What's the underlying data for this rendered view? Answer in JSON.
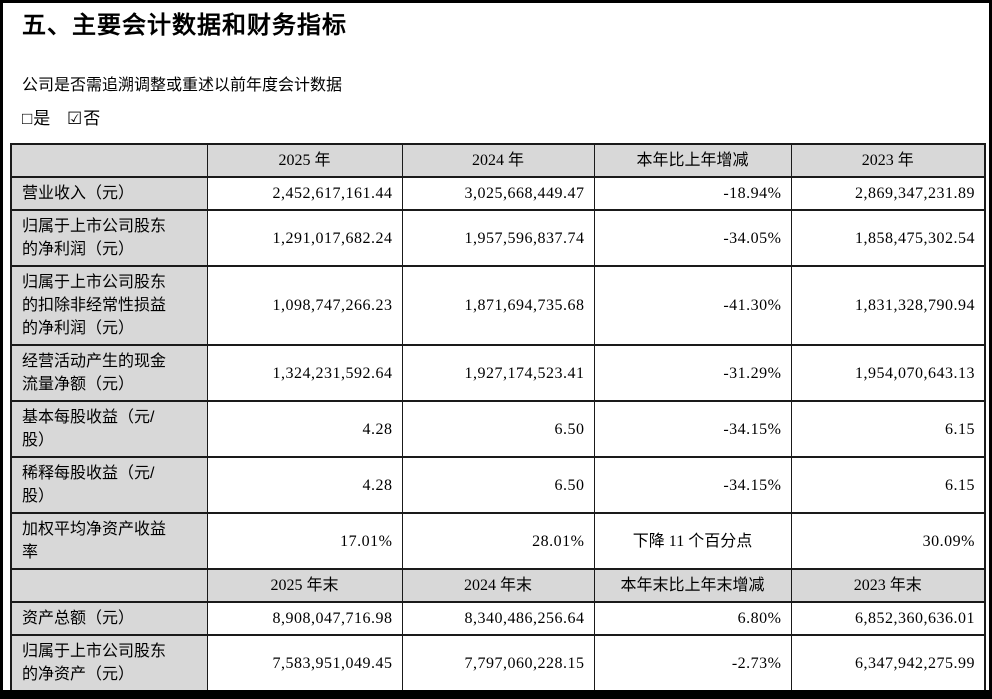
{
  "section": {
    "title": "五、主要会计数据和财务指标",
    "question": "公司是否需追溯调整或重述以前年度会计数据",
    "options": [
      {
        "icon": "□",
        "label": "是",
        "checked": false
      },
      {
        "icon": "☑",
        "label": "否",
        "checked": true
      }
    ]
  },
  "colors": {
    "header_bg": "#d8d8d8",
    "border": "#1a1a1a",
    "page_bg": "#ffffff",
    "frame": "#000000"
  },
  "table": {
    "sections": [
      {
        "header": [
          "",
          "2025 年",
          "2024 年",
          "本年比上年增减",
          "2023 年"
        ],
        "rows": [
          {
            "label": "营业收入（元）",
            "values": [
              "2,452,617,161.44",
              "3,025,668,449.47",
              "-18.94%",
              "2,869,347,231.89"
            ],
            "center_cols": []
          },
          {
            "label": "归属于上市公司股东的净利润（元）",
            "values": [
              "1,291,017,682.24",
              "1,957,596,837.74",
              "-34.05%",
              "1,858,475,302.54"
            ],
            "center_cols": []
          },
          {
            "label": "归属于上市公司股东的扣除非经常性损益的净利润（元）",
            "values": [
              "1,098,747,266.23",
              "1,871,694,735.68",
              "-41.30%",
              "1,831,328,790.94"
            ],
            "center_cols": []
          },
          {
            "label": "经营活动产生的现金流量净额（元）",
            "values": [
              "1,324,231,592.64",
              "1,927,174,523.41",
              "-31.29%",
              "1,954,070,643.13"
            ],
            "center_cols": []
          },
          {
            "label": "基本每股收益（元/股）",
            "values": [
              "4.28",
              "6.50",
              "-34.15%",
              "6.15"
            ],
            "center_cols": []
          },
          {
            "label": "稀释每股收益（元/股）",
            "values": [
              "4.28",
              "6.50",
              "-34.15%",
              "6.15"
            ],
            "center_cols": []
          },
          {
            "label": "加权平均净资产收益率",
            "values": [
              "17.01%",
              "28.01%",
              "下降 11 个百分点",
              "30.09%"
            ],
            "center_cols": [
              2
            ]
          }
        ]
      },
      {
        "header": [
          "",
          "2025 年末",
          "2024 年末",
          "本年末比上年末增减",
          "2023 年末"
        ],
        "rows": [
          {
            "label": "资产总额（元）",
            "values": [
              "8,908,047,716.98",
              "8,340,486,256.64",
              "6.80%",
              "6,852,360,636.01"
            ],
            "center_cols": []
          },
          {
            "label": "归属于上市公司股东的净资产（元）",
            "values": [
              "7,583,951,049.45",
              "7,797,060,228.15",
              "-2.73%",
              "6,347,942,275.99"
            ],
            "center_cols": []
          }
        ]
      }
    ]
  }
}
